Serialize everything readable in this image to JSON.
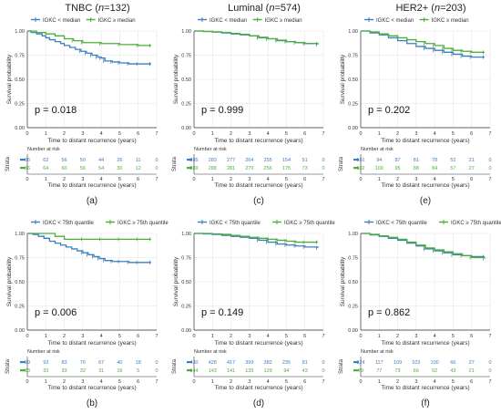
{
  "colors": {
    "low": "#3d7ebf",
    "high": "#4cae3a",
    "axis": "#333333",
    "grid": "#e0e0e0",
    "text": "#333333"
  },
  "chart_data": [
    {
      "type": "line",
      "panel_label": "(a)",
      "title_main": "TNBC (",
      "title_n": "n",
      "title_rest": "=132)",
      "legend": [
        {
          "name": "IGKC < median"
        },
        {
          "name": "IGKC ≥ median"
        }
      ],
      "xlabel": "Time to distant recurrence (years)",
      "ylabel": "Survival probability",
      "xlim": [
        0,
        7
      ],
      "ylim": [
        0,
        1
      ],
      "xticks": [
        "0",
        "1",
        "2",
        "3",
        "4",
        "5",
        "6",
        "7"
      ],
      "yticks": [
        "0.00",
        "0.25",
        "0.50",
        "0.75",
        "1.00"
      ],
      "pvalue": "p = 0.018",
      "series": [
        {
          "x": [
            0,
            0.2,
            0.5,
            0.8,
            1.0,
            1.2,
            1.5,
            1.8,
            2.0,
            2.3,
            2.6,
            2.9,
            3.2,
            3.5,
            3.8,
            4.0,
            4.2,
            4.6,
            5.0,
            5.5,
            6.0,
            6.7
          ],
          "y": [
            1.0,
            0.985,
            0.97,
            0.95,
            0.93,
            0.91,
            0.89,
            0.87,
            0.85,
            0.83,
            0.81,
            0.79,
            0.77,
            0.75,
            0.73,
            0.72,
            0.69,
            0.68,
            0.67,
            0.66,
            0.66,
            0.66
          ]
        },
        {
          "x": [
            0,
            0.5,
            1.0,
            1.5,
            2.0,
            2.5,
            3.0,
            4.0,
            5.0,
            6.0,
            6.7
          ],
          "y": [
            1.0,
            0.985,
            0.97,
            0.95,
            0.92,
            0.9,
            0.88,
            0.87,
            0.86,
            0.85,
            0.85
          ]
        }
      ],
      "risk_table": {
        "header": "Number at risk",
        "strata_label": "Strata",
        "rows": [
          [
            "66",
            "62",
            "56",
            "50",
            "44",
            "26",
            "11",
            "0"
          ],
          [
            "66",
            "64",
            "60",
            "56",
            "54",
            "30",
            "12",
            "0"
          ]
        ]
      }
    },
    {
      "type": "line",
      "panel_label": "(c)",
      "title_main": "Luminal (",
      "title_n": "n",
      "title_rest": "=574)",
      "legend": [
        {
          "name": "IGKC < median"
        },
        {
          "name": "IGKC ≥ median"
        }
      ],
      "xlabel": "Time to distant recurrence (years)",
      "ylabel": "Survival probability",
      "xlim": [
        0,
        7
      ],
      "ylim": [
        0,
        1
      ],
      "xticks": [
        "0",
        "1",
        "2",
        "3",
        "4",
        "5",
        "6",
        "7"
      ],
      "yticks": [
        "0.00",
        "0.25",
        "0.50",
        "0.75",
        "1.00"
      ],
      "pvalue": "p = 0.999",
      "series": [
        {
          "x": [
            0,
            0.5,
            1.0,
            1.5,
            2.0,
            2.5,
            3.0,
            3.5,
            4.0,
            4.5,
            5.0,
            5.5,
            6.0,
            6.7
          ],
          "y": [
            1.0,
            0.995,
            0.99,
            0.98,
            0.97,
            0.96,
            0.95,
            0.93,
            0.92,
            0.9,
            0.89,
            0.88,
            0.87,
            0.86
          ]
        },
        {
          "x": [
            0,
            0.5,
            1.0,
            1.5,
            2.0,
            2.5,
            3.0,
            3.5,
            4.0,
            4.5,
            5.0,
            5.5,
            6.0,
            6.7
          ],
          "y": [
            1.0,
            0.995,
            0.99,
            0.985,
            0.975,
            0.965,
            0.95,
            0.935,
            0.92,
            0.905,
            0.89,
            0.88,
            0.87,
            0.87
          ]
        }
      ],
      "risk_table": {
        "header": "Number at risk",
        "strata_label": "Strata",
        "rows": [
          [
            "285",
            "283",
            "277",
            "264",
            "255",
            "154",
            "51",
            "0"
          ],
          [
            "289",
            "288",
            "281",
            "270",
            "256",
            "175",
            "73",
            "0"
          ]
        ]
      }
    },
    {
      "type": "line",
      "panel_label": "(e)",
      "title_main": "HER2+ (",
      "title_n": "n",
      "title_rest": "=203)",
      "legend": [
        {
          "name": "IGKC < median"
        },
        {
          "name": "IGKC ≥ median"
        }
      ],
      "xlabel": "Time to distant recurrence (years)",
      "ylabel": "Survival probability",
      "xlim": [
        0,
        7
      ],
      "ylim": [
        0,
        1
      ],
      "xticks": [
        "0",
        "1",
        "2",
        "3",
        "4",
        "5",
        "6",
        "7"
      ],
      "yticks": [
        "0.00",
        "0.25",
        "0.50",
        "0.75",
        "1.00"
      ],
      "pvalue": "p = 0.202",
      "series": [
        {
          "x": [
            0,
            0.5,
            1.0,
            1.5,
            2.0,
            2.5,
            3.0,
            3.5,
            4.0,
            4.5,
            5.0,
            5.5,
            6.0,
            6.7
          ],
          "y": [
            1.0,
            0.98,
            0.96,
            0.93,
            0.9,
            0.87,
            0.84,
            0.82,
            0.8,
            0.78,
            0.76,
            0.74,
            0.73,
            0.73
          ]
        },
        {
          "x": [
            0,
            0.5,
            1.0,
            1.5,
            2.0,
            2.5,
            3.0,
            3.5,
            4.0,
            4.5,
            5.0,
            5.5,
            6.0,
            6.7
          ],
          "y": [
            1.0,
            0.99,
            0.97,
            0.95,
            0.93,
            0.91,
            0.89,
            0.87,
            0.85,
            0.82,
            0.8,
            0.79,
            0.78,
            0.78
          ]
        }
      ],
      "risk_table": {
        "header": "Number at risk",
        "strata_label": "Strata",
        "rows": [
          [
            "101",
            "94",
            "87",
            "81",
            "78",
            "52",
            "21",
            "0"
          ],
          [
            "102",
            "100",
            "95",
            "88",
            "84",
            "57",
            "27",
            "0"
          ]
        ]
      }
    },
    {
      "type": "line",
      "panel_label": "(b)",
      "title_main": "",
      "title_n": "",
      "title_rest": "",
      "legend": [
        {
          "name": "IGKC < 75th quantile"
        },
        {
          "name": "IGKC ≥ 75th quantile"
        }
      ],
      "xlabel": "Time to distant recurrence (years)",
      "ylabel": "Survival probability",
      "xlim": [
        0,
        7
      ],
      "ylim": [
        0,
        1
      ],
      "xticks": [
        "0",
        "1",
        "2",
        "3",
        "4",
        "5",
        "6",
        "7"
      ],
      "yticks": [
        "0.00",
        "0.25",
        "0.50",
        "0.75",
        "1.00"
      ],
      "pvalue": "p = 0.006",
      "series": [
        {
          "x": [
            0,
            0.3,
            0.6,
            0.9,
            1.2,
            1.5,
            1.8,
            2.1,
            2.4,
            2.7,
            3.0,
            3.3,
            3.6,
            3.9,
            4.2,
            4.6,
            5.0,
            5.5,
            6.0,
            6.7
          ],
          "y": [
            1.0,
            0.99,
            0.97,
            0.95,
            0.92,
            0.9,
            0.88,
            0.86,
            0.84,
            0.82,
            0.8,
            0.78,
            0.76,
            0.74,
            0.72,
            0.71,
            0.71,
            0.7,
            0.7,
            0.7
          ]
        },
        {
          "x": [
            0,
            1.0,
            1.5,
            2.0,
            3.0,
            4.0,
            5.0,
            6.0,
            6.7
          ],
          "y": [
            1.0,
            1.0,
            0.97,
            0.94,
            0.94,
            0.94,
            0.94,
            0.94,
            0.94
          ]
        }
      ],
      "risk_table": {
        "header": "Number at risk",
        "strata_label": "Strata",
        "rows": [
          [
            "99",
            "93",
            "83",
            "76",
            "67",
            "40",
            "18",
            "0"
          ],
          [
            "33",
            "33",
            "33",
            "32",
            "31",
            "16",
            "5",
            "0"
          ]
        ]
      }
    },
    {
      "type": "line",
      "panel_label": "(d)",
      "title_main": "",
      "title_n": "",
      "title_rest": "",
      "legend": [
        {
          "name": "IGKC < 75th quantile"
        },
        {
          "name": "IGKC ≥ 75th quantile"
        }
      ],
      "xlabel": "Time to distant recurrence (years)",
      "ylabel": "Survival probability",
      "xlim": [
        0,
        7
      ],
      "ylim": [
        0,
        1
      ],
      "xticks": [
        "0",
        "1",
        "2",
        "3",
        "4",
        "5",
        "6",
        "7"
      ],
      "yticks": [
        "0.00",
        "0.25",
        "0.50",
        "0.75",
        "1.00"
      ],
      "pvalue": "p = 0.149",
      "series": [
        {
          "x": [
            0,
            0.5,
            1.0,
            1.5,
            2.0,
            2.5,
            3.0,
            3.5,
            4.0,
            4.5,
            5.0,
            5.5,
            6.0,
            6.7
          ],
          "y": [
            1.0,
            0.995,
            0.99,
            0.98,
            0.97,
            0.96,
            0.95,
            0.93,
            0.91,
            0.89,
            0.88,
            0.87,
            0.86,
            0.85
          ]
        },
        {
          "x": [
            0,
            0.5,
            1.0,
            1.5,
            2.0,
            2.5,
            3.0,
            3.5,
            4.0,
            4.5,
            5.0,
            5.5,
            6.0,
            6.7
          ],
          "y": [
            1.0,
            1.0,
            0.995,
            0.99,
            0.98,
            0.97,
            0.96,
            0.95,
            0.94,
            0.93,
            0.92,
            0.91,
            0.91,
            0.91
          ]
        }
      ],
      "risk_table": {
        "header": "Number at risk",
        "strata_label": "Strata",
        "rows": [
          [
            "430",
            "428",
            "417",
            "399",
            "382",
            "235",
            "81",
            "0"
          ],
          [
            "144",
            "143",
            "141",
            "135",
            "129",
            "94",
            "43",
            "0"
          ]
        ]
      }
    },
    {
      "type": "line",
      "panel_label": "(f)",
      "title_main": "",
      "title_n": "",
      "title_rest": "",
      "legend": [
        {
          "name": "IGKC < 75th quantile"
        },
        {
          "name": "IGKC ≥ 75th quantile"
        }
      ],
      "xlabel": "Time to distant recurrence (years)",
      "ylabel": "Survival probability",
      "xlim": [
        0,
        7
      ],
      "ylim": [
        0,
        1
      ],
      "xticks": [
        "0",
        "1",
        "2",
        "3",
        "4",
        "5",
        "6",
        "7"
      ],
      "yticks": [
        "0.00",
        "0.25",
        "0.50",
        "0.75",
        "1.00"
      ],
      "pvalue": "p = 0.862",
      "series": [
        {
          "x": [
            0,
            0.5,
            1.0,
            1.5,
            2.0,
            2.5,
            3.0,
            3.5,
            4.0,
            4.5,
            5.0,
            5.5,
            6.0,
            6.7
          ],
          "y": [
            1.0,
            0.985,
            0.97,
            0.95,
            0.93,
            0.9,
            0.87,
            0.84,
            0.82,
            0.8,
            0.78,
            0.77,
            0.76,
            0.76
          ]
        },
        {
          "x": [
            0,
            0.5,
            1.0,
            1.5,
            2.0,
            2.5,
            3.0,
            3.5,
            4.0,
            4.5,
            5.0,
            5.5,
            6.0,
            6.7
          ],
          "y": [
            1.0,
            0.99,
            0.975,
            0.96,
            0.94,
            0.91,
            0.88,
            0.85,
            0.83,
            0.81,
            0.79,
            0.77,
            0.75,
            0.74
          ]
        }
      ],
      "risk_table": {
        "header": "Number at risk",
        "strata_label": "Strata",
        "rows": [
          [
            "124",
            "117",
            "109",
            "103",
            "100",
            "66",
            "27",
            "0"
          ],
          [
            "79",
            "77",
            "73",
            "66",
            "62",
            "43",
            "21",
            "0"
          ]
        ]
      }
    }
  ]
}
